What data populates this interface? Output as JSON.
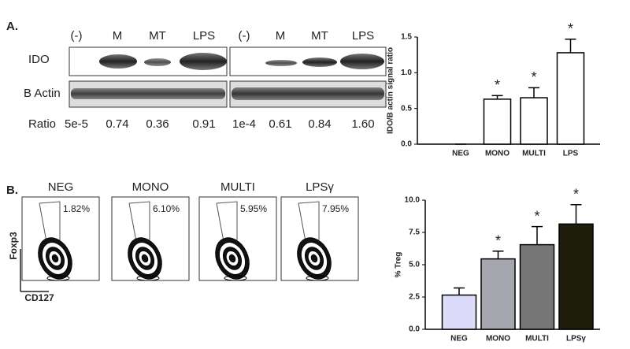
{
  "panel_a": {
    "label": "A.",
    "lanes": [
      "(-)",
      "M",
      "MT",
      "LPS",
      "(-)",
      "M",
      "MT",
      "LPS"
    ],
    "rows": [
      "IDO",
      "B Actin"
    ],
    "ratio_label": "Ratio",
    "ratios": [
      "5e-5",
      "0.74",
      "0.36",
      "0.91",
      "1e-4",
      "0.61",
      "0.84",
      "1.60"
    ]
  },
  "panel_b": {
    "label": "B.",
    "y_label": "Foxp3",
    "x_label": "CD127",
    "plots": [
      {
        "title": "NEG",
        "gate": "1.82%"
      },
      {
        "title": "MONO",
        "gate": "6.10%"
      },
      {
        "title": "MULTI",
        "gate": "5.95%"
      },
      {
        "title": "LPSγ",
        "gate": "7.95%"
      }
    ]
  },
  "chart_data": [
    {
      "type": "bar",
      "y_label": "IDO/B actin signal ratio",
      "categories": [
        "NEG",
        "MONO",
        "MULTI",
        "LPS"
      ],
      "values": [
        0,
        0.63,
        0.65,
        1.28
      ],
      "errors": [
        0,
        0.05,
        0.14,
        0.19
      ],
      "significance": [
        null,
        "*",
        "*",
        "*"
      ],
      "colors": [
        "#ffffff",
        "#ffffff",
        "#ffffff",
        "#ffffff"
      ],
      "ylim": [
        0,
        1.5
      ],
      "yticks": [
        {
          "value": 0,
          "label": "0.0"
        },
        0.5,
        {
          "value": 1,
          "label": "1.0"
        },
        1.5
      ]
    },
    {
      "type": "bar",
      "y_label": "% Treg",
      "categories": [
        "NEG",
        "MONO",
        "MULTI",
        "LPSγ"
      ],
      "values": [
        2.65,
        5.45,
        6.55,
        8.15
      ],
      "errors": [
        0.55,
        0.6,
        1.4,
        1.5
      ],
      "significance": [
        null,
        "*",
        "*",
        "*"
      ],
      "colors": [
        "#dcdcfa",
        "#a6a6ae",
        "#777777",
        "#1e1e0a"
      ],
      "ylim": [
        0,
        10
      ],
      "yticks": [
        {
          "value": 0,
          "label": "0.0"
        },
        2.5,
        {
          "value": 5,
          "label": "5.0"
        },
        7.5,
        {
          "value": 10,
          "label": "10.0"
        }
      ]
    }
  ]
}
